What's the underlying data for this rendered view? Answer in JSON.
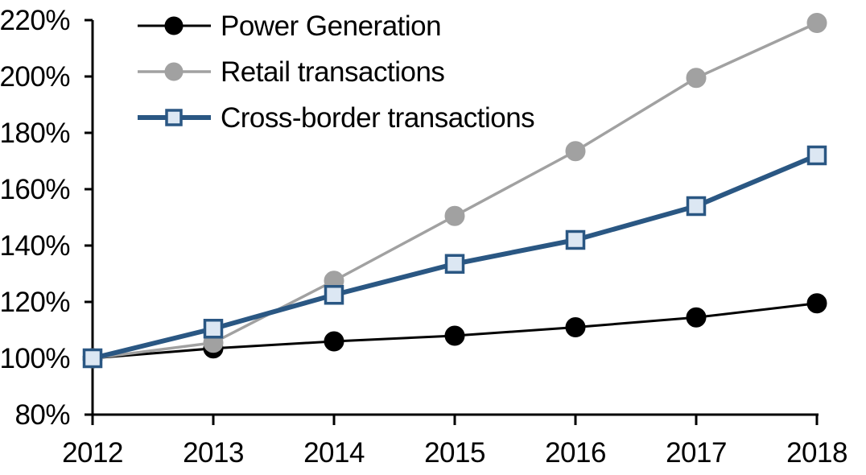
{
  "chart_data": {
    "type": "line",
    "title": "",
    "xlabel": "",
    "ylabel": "",
    "categories": [
      "2012",
      "2013",
      "2014",
      "2015",
      "2016",
      "2017",
      "2018"
    ],
    "series": [
      {
        "name": "Power Generation",
        "values": [
          100,
          103.5,
          106,
          108,
          111,
          114.5,
          119.5
        ],
        "line_color": "#000000",
        "line_width": 3,
        "marker": "circle",
        "marker_fill": "#000000",
        "marker_stroke": "#000000"
      },
      {
        "name": "Retail transactions",
        "values": [
          100,
          105.5,
          127.5,
          150.5,
          173.5,
          199.5,
          219
        ],
        "line_color": "#A1A1A1",
        "line_width": 3.5,
        "marker": "circle",
        "marker_fill": "#A1A1A1",
        "marker_stroke": "#A1A1A1"
      },
      {
        "name": "Cross-border transactions",
        "values": [
          100,
          110.5,
          122.5,
          133.5,
          142,
          154,
          172
        ],
        "line_color": "#2A5783",
        "line_width": 6,
        "marker": "square",
        "marker_fill": "#DCE7F3",
        "marker_stroke": "#2A5783"
      }
    ],
    "ylim": [
      80,
      220
    ],
    "ytick_step": 20,
    "ytick_values": [
      80,
      100,
      120,
      140,
      160,
      180,
      200,
      220
    ],
    "ytick_labels": [
      "80%",
      "100%",
      "120%",
      "140%",
      "160%",
      "180%",
      "200%",
      "220%"
    ],
    "grid": false,
    "legend_position": "top-left",
    "axis_color": "#000000"
  }
}
